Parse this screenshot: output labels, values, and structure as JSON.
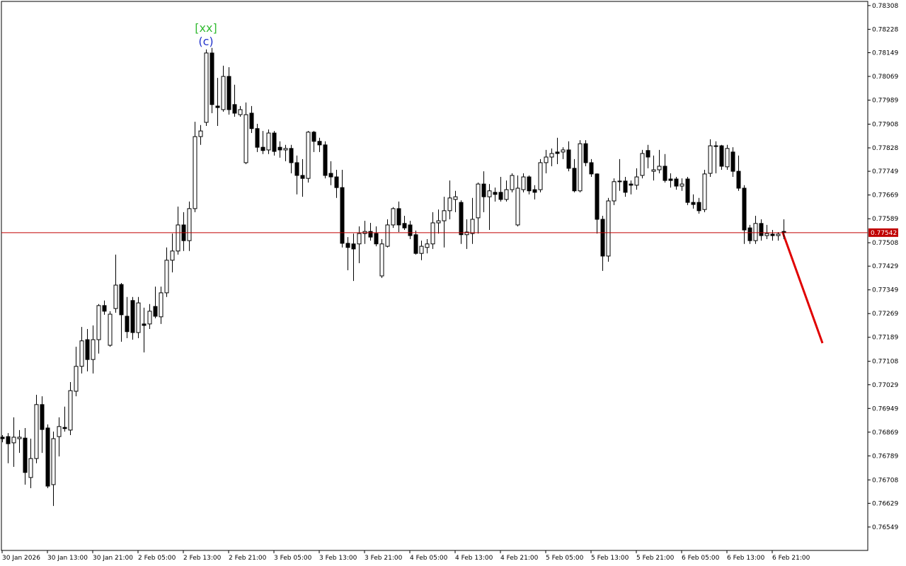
{
  "chart_data": {
    "type": "candlestick",
    "categories": [
      "30 Jan 2026",
      null,
      null,
      null,
      null,
      null,
      null,
      null,
      "30 Jan 13:00",
      null,
      null,
      null,
      null,
      null,
      null,
      null,
      "30 Jan 21:00",
      null,
      null,
      null,
      null,
      null,
      null,
      null,
      "2 Feb 05:00",
      null,
      null,
      null,
      null,
      null,
      null,
      null,
      "2 Feb 13:00",
      null,
      null,
      null,
      null,
      null,
      null,
      null,
      "2 Feb 21:00",
      null,
      null,
      null,
      null,
      null,
      null,
      null,
      "3 Feb 05:00",
      null,
      null,
      null,
      null,
      null,
      null,
      null,
      "3 Feb 13:00",
      null,
      null,
      null,
      null,
      null,
      null,
      null,
      "3 Feb 21:00",
      null,
      null,
      null,
      null,
      null,
      null,
      null,
      "4 Feb 05:00",
      null,
      null,
      null,
      null,
      null,
      null,
      null,
      "4 Feb 13:00",
      null,
      null,
      null,
      null,
      null,
      null,
      null,
      "4 Feb 21:00",
      null,
      null,
      null,
      null,
      null,
      null,
      null,
      "5 Feb 05:00",
      null,
      null,
      null,
      null,
      null,
      null,
      null,
      "5 Feb 13:00",
      null,
      null,
      null,
      null,
      null,
      null,
      null,
      "5 Feb 21:00",
      null,
      null,
      null,
      null,
      null,
      null,
      null,
      "6 Feb 05:00",
      null,
      null,
      null,
      null,
      null,
      null,
      null,
      "6 Feb 13:00",
      null,
      null,
      null,
      null,
      null,
      null,
      null,
      "6 Feb 21:00",
      null,
      null
    ],
    "open": [
      0.76852,
      0.76854,
      0.76833,
      0.76847,
      0.76849,
      0.76716,
      0.7678,
      0.76962,
      0.76883,
      0.76692,
      0.76854,
      0.76885,
      0.76876,
      0.77007,
      0.77091,
      0.77181,
      0.77114,
      0.77181,
      0.77296,
      0.77162,
      0.77286,
      0.77367,
      0.7726,
      0.77313,
      0.77205,
      0.77234,
      0.77234,
      0.77293,
      0.77258,
      0.77339,
      0.77449,
      0.7748,
      0.77568,
      0.77515,
      0.77623,
      0.77866,
      0.77914,
      0.78148,
      0.77969,
      0.77957,
      0.78069,
      0.77974,
      0.7794,
      0.77778,
      0.77945,
      0.77893,
      0.7783,
      0.77821,
      0.77878,
      0.7783,
      0.77821,
      0.77826,
      0.77778,
      0.77735,
      0.77725,
      0.77881,
      0.7785,
      0.77838,
      0.77742,
      0.7773,
      0.77694,
      0.77506,
      0.77504,
      0.77504,
      0.77539,
      0.77546,
      0.77539,
      0.77396,
      0.77496,
      0.77568,
      0.77623,
      0.77573,
      0.77568,
      0.77535,
      0.77472,
      0.77492,
      0.77504,
      0.77575,
      0.77582,
      0.77616,
      0.77654,
      0.77644,
      0.77535,
      0.77539,
      0.77592,
      0.77706,
      0.77663,
      0.77678,
      0.77678,
      0.77654,
      0.77687,
      0.77568,
      0.77687,
      0.7773,
      0.77687,
      0.77687,
      0.77778,
      0.77797,
      0.77814,
      0.77814,
      0.77821,
      0.77759,
      0.77683,
      0.77842,
      0.77778,
      0.7774,
      0.77587,
      0.77463,
      0.77649,
      0.77714,
      0.77716,
      0.77706,
      0.77702,
      0.77735,
      0.77819,
      0.77749,
      0.77754,
      0.77766,
      0.77723,
      0.77723,
      0.77699,
      0.77723,
      0.77644,
      0.77644,
      0.7762,
      0.77742,
      0.77835,
      0.77835,
      0.77764,
      0.77814,
      0.77749,
      0.77692,
      0.77558,
      0.77515,
      0.77573,
      0.77532,
      0.77537,
      0.77532,
      0.77546
    ],
    "high": [
      0.76859,
      0.76866,
      0.76919,
      0.76876,
      0.76883,
      0.76847,
      0.76995,
      0.7699,
      0.76895,
      0.76871,
      0.76919,
      0.76955,
      0.77038,
      0.77157,
      0.77224,
      0.77217,
      0.77229,
      0.77301,
      0.77313,
      0.77277,
      0.77468,
      0.77372,
      0.77325,
      0.77325,
      0.77325,
      0.77289,
      0.77301,
      0.7736,
      0.7736,
      0.77492,
      0.77539,
      0.7763,
      0.77611,
      0.77647,
      0.77916,
      0.77905,
      0.7816,
      0.78165,
      0.78064,
      0.78105,
      0.781,
      0.78041,
      0.77969,
      0.77981,
      0.77969,
      0.77909,
      0.77885,
      0.7789,
      0.77885,
      0.7785,
      0.77838,
      0.77838,
      0.77802,
      0.7779,
      0.77885,
      0.77885,
      0.77862,
      0.7785,
      0.77783,
      0.77754,
      0.77754,
      0.77527,
      0.77539,
      0.77563,
      0.77582,
      0.77575,
      0.77563,
      0.7752,
      0.77587,
      0.77628,
      0.77647,
      0.77599,
      0.77582,
      0.77549,
      0.77515,
      0.7752,
      0.77611,
      0.7762,
      0.77663,
      0.77718,
      0.77683,
      0.77651,
      0.77587,
      0.77659,
      0.77711,
      0.77749,
      0.77706,
      0.77694,
      0.7773,
      0.77718,
      0.77742,
      0.77735,
      0.77742,
      0.77735,
      0.77702,
      0.7779,
      0.77821,
      0.77826,
      0.77862,
      0.7783,
      0.7785,
      0.7779,
      0.77854,
      0.77854,
      0.7779,
      0.77742,
      0.77599,
      0.77659,
      0.77725,
      0.7779,
      0.7773,
      0.77718,
      0.77759,
      0.77821,
      0.77838,
      0.77802,
      0.77821,
      0.77807,
      0.77742,
      0.7773,
      0.77725,
      0.7773,
      0.77671,
      0.77659,
      0.77754,
      0.77857,
      0.7785,
      0.77838,
      0.77838,
      0.7783,
      0.77802,
      0.77702,
      0.77568,
      0.77599,
      0.77587,
      0.77568,
      0.77551,
      0.77544,
      0.77587
    ],
    "low": [
      0.76835,
      0.76764,
      0.76752,
      0.76799,
      0.76692,
      0.7668,
      0.76764,
      0.76799,
      0.7668,
      0.7662,
      0.76787,
      0.76871,
      0.76859,
      0.7699,
      0.77067,
      0.77074,
      0.77067,
      0.77134,
      0.77265,
      0.77157,
      0.77272,
      0.77174,
      0.77186,
      0.77181,
      0.77186,
      0.77138,
      0.77217,
      0.77253,
      0.77234,
      0.77325,
      0.77408,
      0.77468,
      0.7748,
      0.7748,
      0.77611,
      0.77838,
      0.77902,
      0.77945,
      0.77902,
      0.7795,
      0.7794,
      0.77933,
      0.77933,
      0.77773,
      0.77878,
      0.77814,
      0.77807,
      0.77807,
      0.77802,
      0.77795,
      0.77783,
      0.77742,
      0.77671,
      0.77663,
      0.77711,
      0.77814,
      0.77814,
      0.77725,
      0.77702,
      0.77659,
      0.77492,
      0.77415,
      0.77379,
      0.77439,
      0.77504,
      0.77515,
      0.77496,
      0.77389,
      0.77492,
      0.77558,
      0.77544,
      0.77551,
      0.7752,
      0.77468,
      0.77449,
      0.77472,
      0.77487,
      0.77539,
      0.77492,
      0.77587,
      0.77611,
      0.77504,
      0.77487,
      0.77504,
      0.77539,
      0.77611,
      0.77551,
      0.77647,
      0.77647,
      0.77647,
      0.77678,
      0.77563,
      0.77678,
      0.77671,
      0.77654,
      0.77678,
      0.77742,
      0.77766,
      0.77773,
      0.7779,
      0.77749,
      0.77678,
      0.77678,
      0.77766,
      0.7773,
      0.77539,
      0.77413,
      0.77444,
      0.77635,
      0.77683,
      0.77663,
      0.77671,
      0.77687,
      0.77725,
      0.77759,
      0.77718,
      0.77742,
      0.77711,
      0.77694,
      0.77687,
      0.77683,
      0.77635,
      0.77623,
      0.77606,
      0.77611,
      0.7773,
      0.77742,
      0.77754,
      0.77754,
      0.7773,
      0.77683,
      0.77504,
      0.77504,
      0.77504,
      0.77515,
      0.7752,
      0.77515,
      0.77515,
      0.7752
    ],
    "close": [
      0.76847,
      0.7683,
      0.76852,
      0.76852,
      0.76733,
      0.7678,
      0.76962,
      0.76878,
      0.76687,
      0.76847,
      0.76888,
      0.76881,
      0.77009,
      0.77091,
      0.77177,
      0.77114,
      0.77181,
      0.77296,
      0.77277,
      0.77267,
      0.77365,
      0.77265,
      0.77208,
      0.77205,
      0.77305,
      0.77229,
      0.77277,
      0.7726,
      0.77339,
      0.77449,
      0.7748,
      0.77568,
      0.77515,
      0.77623,
      0.77866,
      0.77885,
      0.78148,
      0.77974,
      0.77964,
      0.78069,
      0.77957,
      0.77945,
      0.77957,
      0.7794,
      0.77893,
      0.7783,
      0.77819,
      0.77878,
      0.77816,
      0.77821,
      0.77826,
      0.77778,
      0.77735,
      0.77725,
      0.77881,
      0.7785,
      0.77838,
      0.77735,
      0.7773,
      0.77694,
      0.77506,
      0.77492,
      0.77487,
      0.77539,
      0.77546,
      0.77527,
      0.77504,
      0.77504,
      0.77568,
      0.77623,
      0.77568,
      0.77558,
      0.77532,
      0.77472,
      0.77496,
      0.77504,
      0.77575,
      0.77582,
      0.77616,
      0.77659,
      0.77663,
      0.77535,
      0.77544,
      0.77587,
      0.77706,
      0.77663,
      0.77683,
      0.77671,
      0.77654,
      0.77687,
      0.77735,
      0.77692,
      0.7773,
      0.77683,
      0.77678,
      0.77778,
      0.77797,
      0.77809,
      0.77809,
      0.77821,
      0.77759,
      0.77683,
      0.77842,
      0.77778,
      0.7774,
      0.77587,
      0.77463,
      0.77649,
      0.77714,
      0.77716,
      0.77678,
      0.77702,
      0.7773,
      0.77809,
      0.77797,
      0.77754,
      0.77766,
      0.77718,
      0.77718,
      0.77699,
      0.77706,
      0.77644,
      0.77637,
      0.77616,
      0.7774,
      0.77835,
      0.77833,
      0.77766,
      0.77826,
      0.77749,
      0.77692,
      0.77551,
      0.77515,
      0.77573,
      0.77532,
      0.77539,
      0.77532,
      0.77537,
      0.77542
    ],
    "up_color": "#ffffff",
    "down_color": "#000000",
    "wick_color": "#000000",
    "ylim": [
      0.7647,
      0.78322
    ],
    "yticks": [
      0.78308,
      0.78228,
      0.78149,
      0.78069,
      0.77989,
      0.77908,
      0.77828,
      0.77749,
      0.77669,
      0.77589,
      0.77508,
      0.77429,
      0.77349,
      0.77269,
      0.77189,
      0.77108,
      0.77029,
      0.76949,
      0.76869,
      0.76789,
      0.76708,
      0.76629,
      0.76549
    ],
    "last_price": 0.77542,
    "last_price_color": "#c00000",
    "annotations": [
      {
        "text": "[xx]",
        "color": "#33bb33"
      },
      {
        "text": "(c)",
        "color": "#2233cc"
      }
    ]
  }
}
